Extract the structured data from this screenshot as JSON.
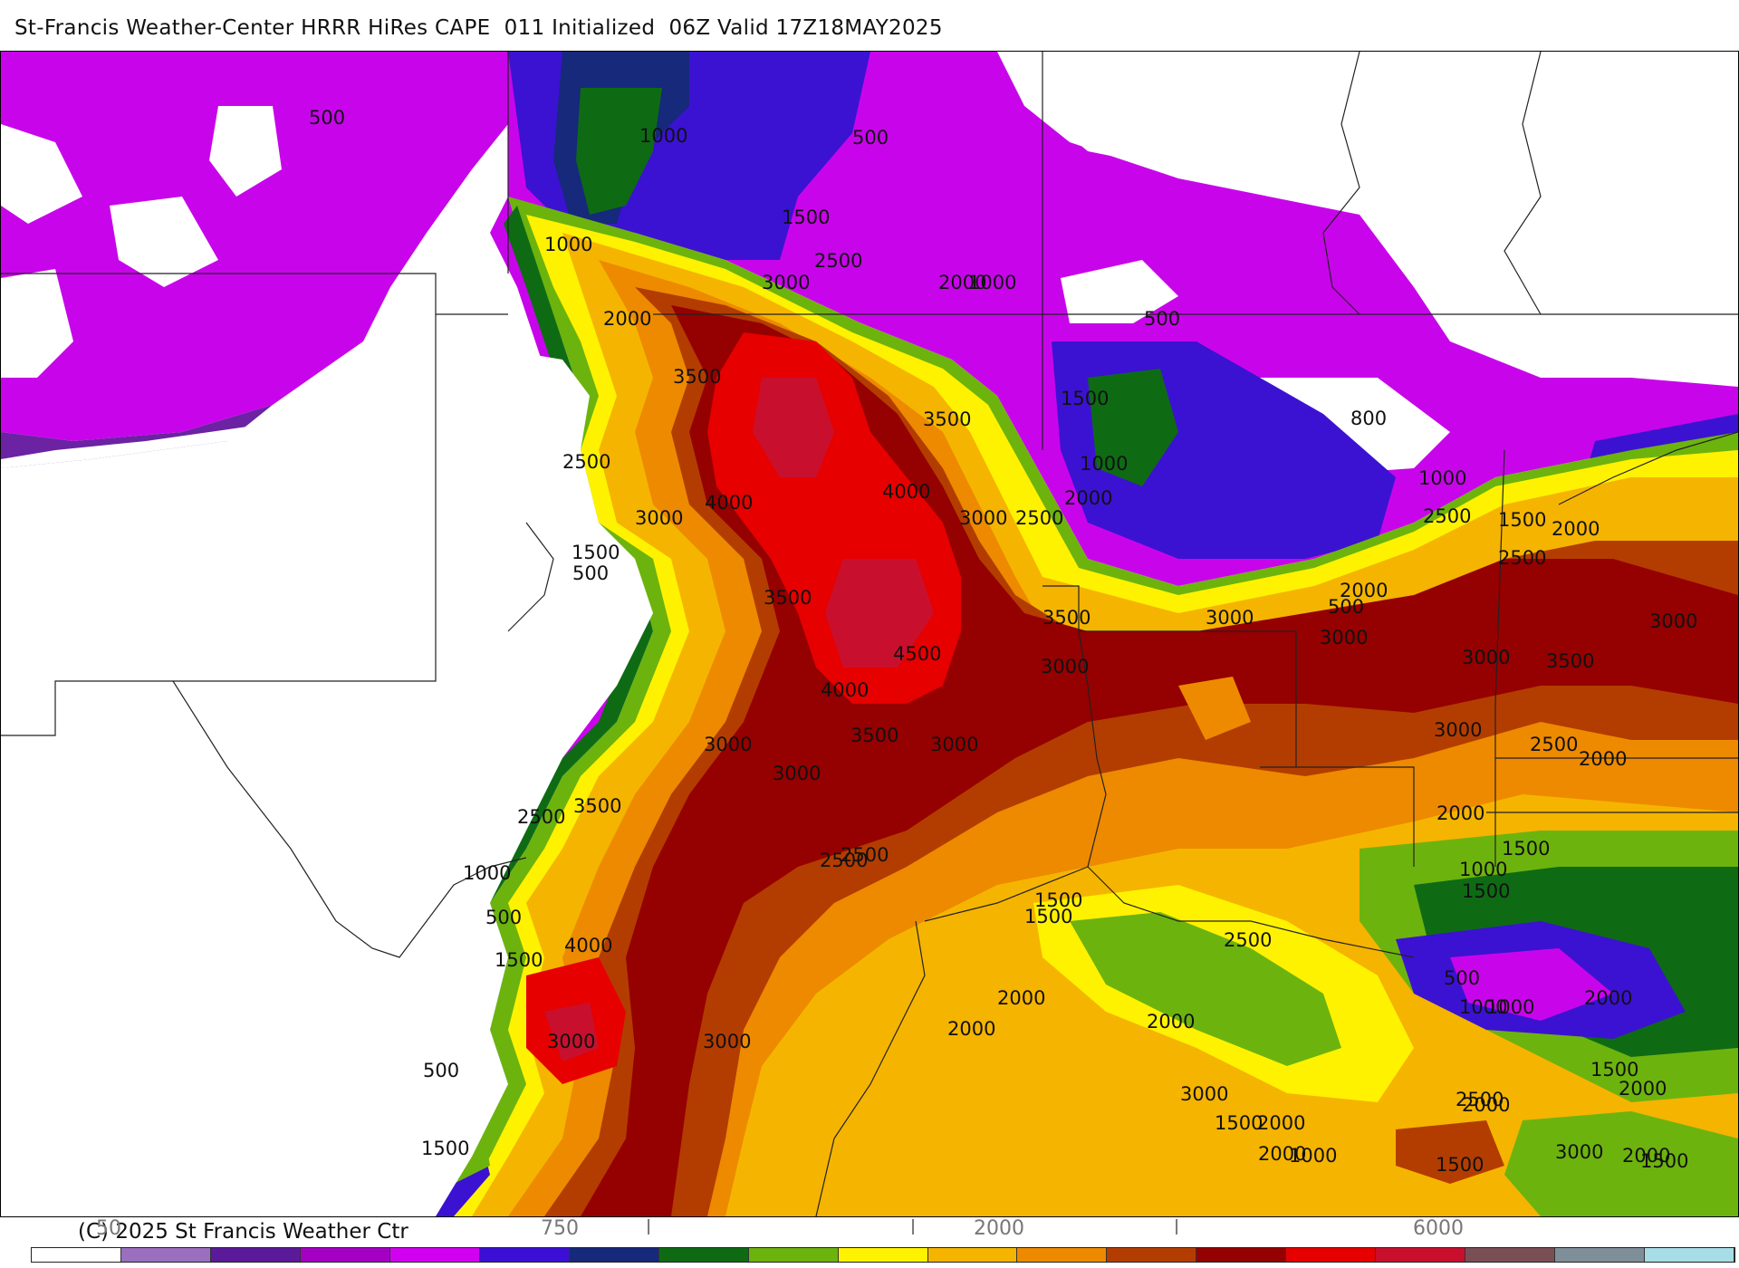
{
  "header": {
    "title": "St-Francis Weather-Center HRRR HiRes CAPE  011 Initialized  06Z Valid 17Z18MAY2025"
  },
  "footer": {
    "copyright": "(C) 2025 St Francis Weather Ctr"
  },
  "colorbar": {
    "colors": [
      "#ffffff",
      "#9b6fc0",
      "#5b1a99",
      "#a400c4",
      "#d100f0",
      "#3b0fd6",
      "#16297a",
      "#0e6b14",
      "#6db30e",
      "#fff200",
      "#f5b400",
      "#ed8a00",
      "#b33d00",
      "#950000",
      "#e60000",
      "#c8102e",
      "#7a4e55",
      "#7f8f9a",
      "#a7dde6"
    ],
    "tick_labels": [
      "50",
      "750",
      "l",
      "l",
      "2000",
      "l",
      "6000"
    ]
  },
  "map": {
    "contour_labels": [
      "500",
      "1000",
      "500",
      "1000",
      "1500",
      "2500",
      "3000",
      "2000",
      "1000",
      "2000",
      "500",
      "3500",
      "3500",
      "1500",
      "2500",
      "4000",
      "4000",
      "1000",
      "2000",
      "3000",
      "3000",
      "2500",
      "1500",
      "500",
      "3500",
      "3500",
      "3000",
      "3000",
      "4500",
      "4000",
      "3500",
      "3000",
      "3000",
      "3000",
      "3000",
      "2000",
      "3500",
      "2500",
      "2500",
      "2500",
      "1000",
      "500",
      "4000",
      "1500",
      "3000",
      "2000",
      "2000",
      "3000",
      "1500",
      "1500",
      "2000",
      "2500",
      "3000",
      "2000",
      "1000",
      "800",
      "500",
      "1000",
      "2500",
      "1500",
      "2000",
      "2500",
      "3000",
      "3500",
      "3000",
      "3000",
      "2500",
      "2000",
      "2000",
      "1500",
      "1000",
      "1500",
      "500",
      "1000",
      "1000",
      "2000",
      "1500",
      "2000",
      "2500",
      "2000",
      "1500",
      "1500",
      "2000",
      "500",
      "1500",
      "3000",
      "2000",
      "1500"
    ]
  }
}
